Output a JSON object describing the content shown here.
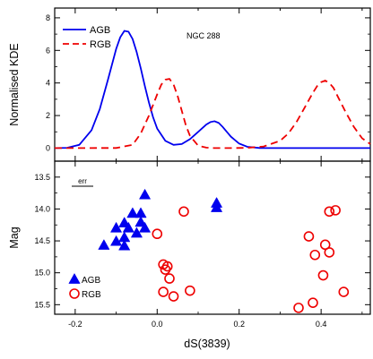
{
  "chart_data": [
    {
      "type": "line",
      "panel": "top",
      "annotation": "NGC 288",
      "ylabel": "Normalised KDE",
      "xlim": [
        -0.25,
        0.52
      ],
      "ylim": [
        -0.8,
        8.6
      ],
      "yticks": [
        0,
        2,
        4,
        6,
        8
      ],
      "ytick_labels": [
        "0",
        "2",
        "4",
        "6",
        "8"
      ],
      "grid": false,
      "legend_position": "top-left",
      "series": [
        {
          "name": "AGB",
          "color": "#0000ee",
          "style": "solid",
          "x": [
            -0.25,
            -0.22,
            -0.19,
            -0.16,
            -0.14,
            -0.12,
            -0.1,
            -0.09,
            -0.08,
            -0.07,
            -0.06,
            -0.05,
            -0.04,
            -0.03,
            -0.02,
            -0.01,
            0.0,
            0.02,
            0.04,
            0.06,
            0.08,
            0.1,
            0.12,
            0.13,
            0.14,
            0.15,
            0.16,
            0.17,
            0.18,
            0.2,
            0.22,
            0.25,
            0.3,
            0.4,
            0.52
          ],
          "y": [
            0.0,
            0.02,
            0.2,
            1.1,
            2.4,
            4.2,
            6.1,
            6.8,
            7.2,
            7.15,
            6.7,
            5.9,
            4.9,
            3.8,
            2.8,
            1.9,
            1.2,
            0.45,
            0.2,
            0.25,
            0.55,
            1.0,
            1.45,
            1.6,
            1.65,
            1.55,
            1.3,
            1.0,
            0.7,
            0.28,
            0.08,
            0.01,
            0.0,
            0.0,
            0.0
          ]
        },
        {
          "name": "RGB",
          "color": "#ee0000",
          "style": "dashed",
          "x": [
            -0.25,
            -0.1,
            -0.06,
            -0.04,
            -0.02,
            0.0,
            0.01,
            0.02,
            0.03,
            0.04,
            0.05,
            0.06,
            0.07,
            0.08,
            0.1,
            0.12,
            0.14,
            0.18,
            0.22,
            0.26,
            0.3,
            0.32,
            0.34,
            0.36,
            0.38,
            0.39,
            0.4,
            0.41,
            0.42,
            0.43,
            0.44,
            0.46,
            0.48,
            0.5,
            0.52
          ],
          "y": [
            0.0,
            0.01,
            0.2,
            0.9,
            2.0,
            3.3,
            3.9,
            4.2,
            4.25,
            3.9,
            3.2,
            2.3,
            1.4,
            0.75,
            0.15,
            0.03,
            0.0,
            0.0,
            0.02,
            0.1,
            0.45,
            0.9,
            1.6,
            2.5,
            3.4,
            3.8,
            4.05,
            4.15,
            4.0,
            3.7,
            3.2,
            2.2,
            1.3,
            0.6,
            0.25
          ]
        }
      ]
    },
    {
      "type": "scatter",
      "panel": "bottom",
      "xlabel": "dS(3839)",
      "ylabel": "Mag",
      "annotation": "err",
      "xlim": [
        -0.25,
        0.52
      ],
      "ylim": [
        13.25,
        15.65
      ],
      "y_inverted": true,
      "xticks": [
        -0.2,
        0.0,
        0.2,
        0.4
      ],
      "xtick_labels": [
        "-0.2",
        "0.0",
        "0.2",
        "0.4"
      ],
      "yticks": [
        13.5,
        14.0,
        14.5,
        15.0,
        15.5
      ],
      "ytick_labels": [
        "13.5",
        "14.0",
        "14.5",
        "15.0",
        "15.5"
      ],
      "grid": false,
      "legend_position": "bottom-left",
      "series": [
        {
          "name": "AGB",
          "marker": "filled-triangle",
          "color": "#0000ee",
          "points": [
            [
              -0.03,
              13.78
            ],
            [
              -0.06,
              14.07
            ],
            [
              -0.04,
              14.07
            ],
            [
              -0.08,
              14.22
            ],
            [
              -0.04,
              14.21
            ],
            [
              -0.1,
              14.3
            ],
            [
              -0.07,
              14.3
            ],
            [
              -0.03,
              14.3
            ],
            [
              -0.05,
              14.38
            ],
            [
              -0.08,
              14.45
            ],
            [
              -0.1,
              14.51
            ],
            [
              -0.13,
              14.57
            ],
            [
              -0.08,
              14.58
            ],
            [
              0.145,
              13.91
            ],
            [
              0.145,
              13.98
            ]
          ]
        },
        {
          "name": "RGB",
          "marker": "open-circle",
          "color": "#ee0000",
          "points": [
            [
              0.065,
              14.04
            ],
            [
              0.0,
              14.39
            ],
            [
              0.015,
              14.87
            ],
            [
              0.025,
              14.9
            ],
            [
              0.02,
              14.95
            ],
            [
              0.03,
              15.09
            ],
            [
              0.015,
              15.3
            ],
            [
              0.04,
              15.37
            ],
            [
              0.08,
              15.28
            ],
            [
              0.42,
              14.04
            ],
            [
              0.435,
              14.02
            ],
            [
              0.37,
              14.43
            ],
            [
              0.41,
              14.56
            ],
            [
              0.42,
              14.68
            ],
            [
              0.385,
              14.72
            ],
            [
              0.405,
              15.04
            ],
            [
              0.455,
              15.3
            ],
            [
              0.38,
              15.47
            ],
            [
              0.345,
              15.55
            ]
          ]
        }
      ]
    }
  ]
}
